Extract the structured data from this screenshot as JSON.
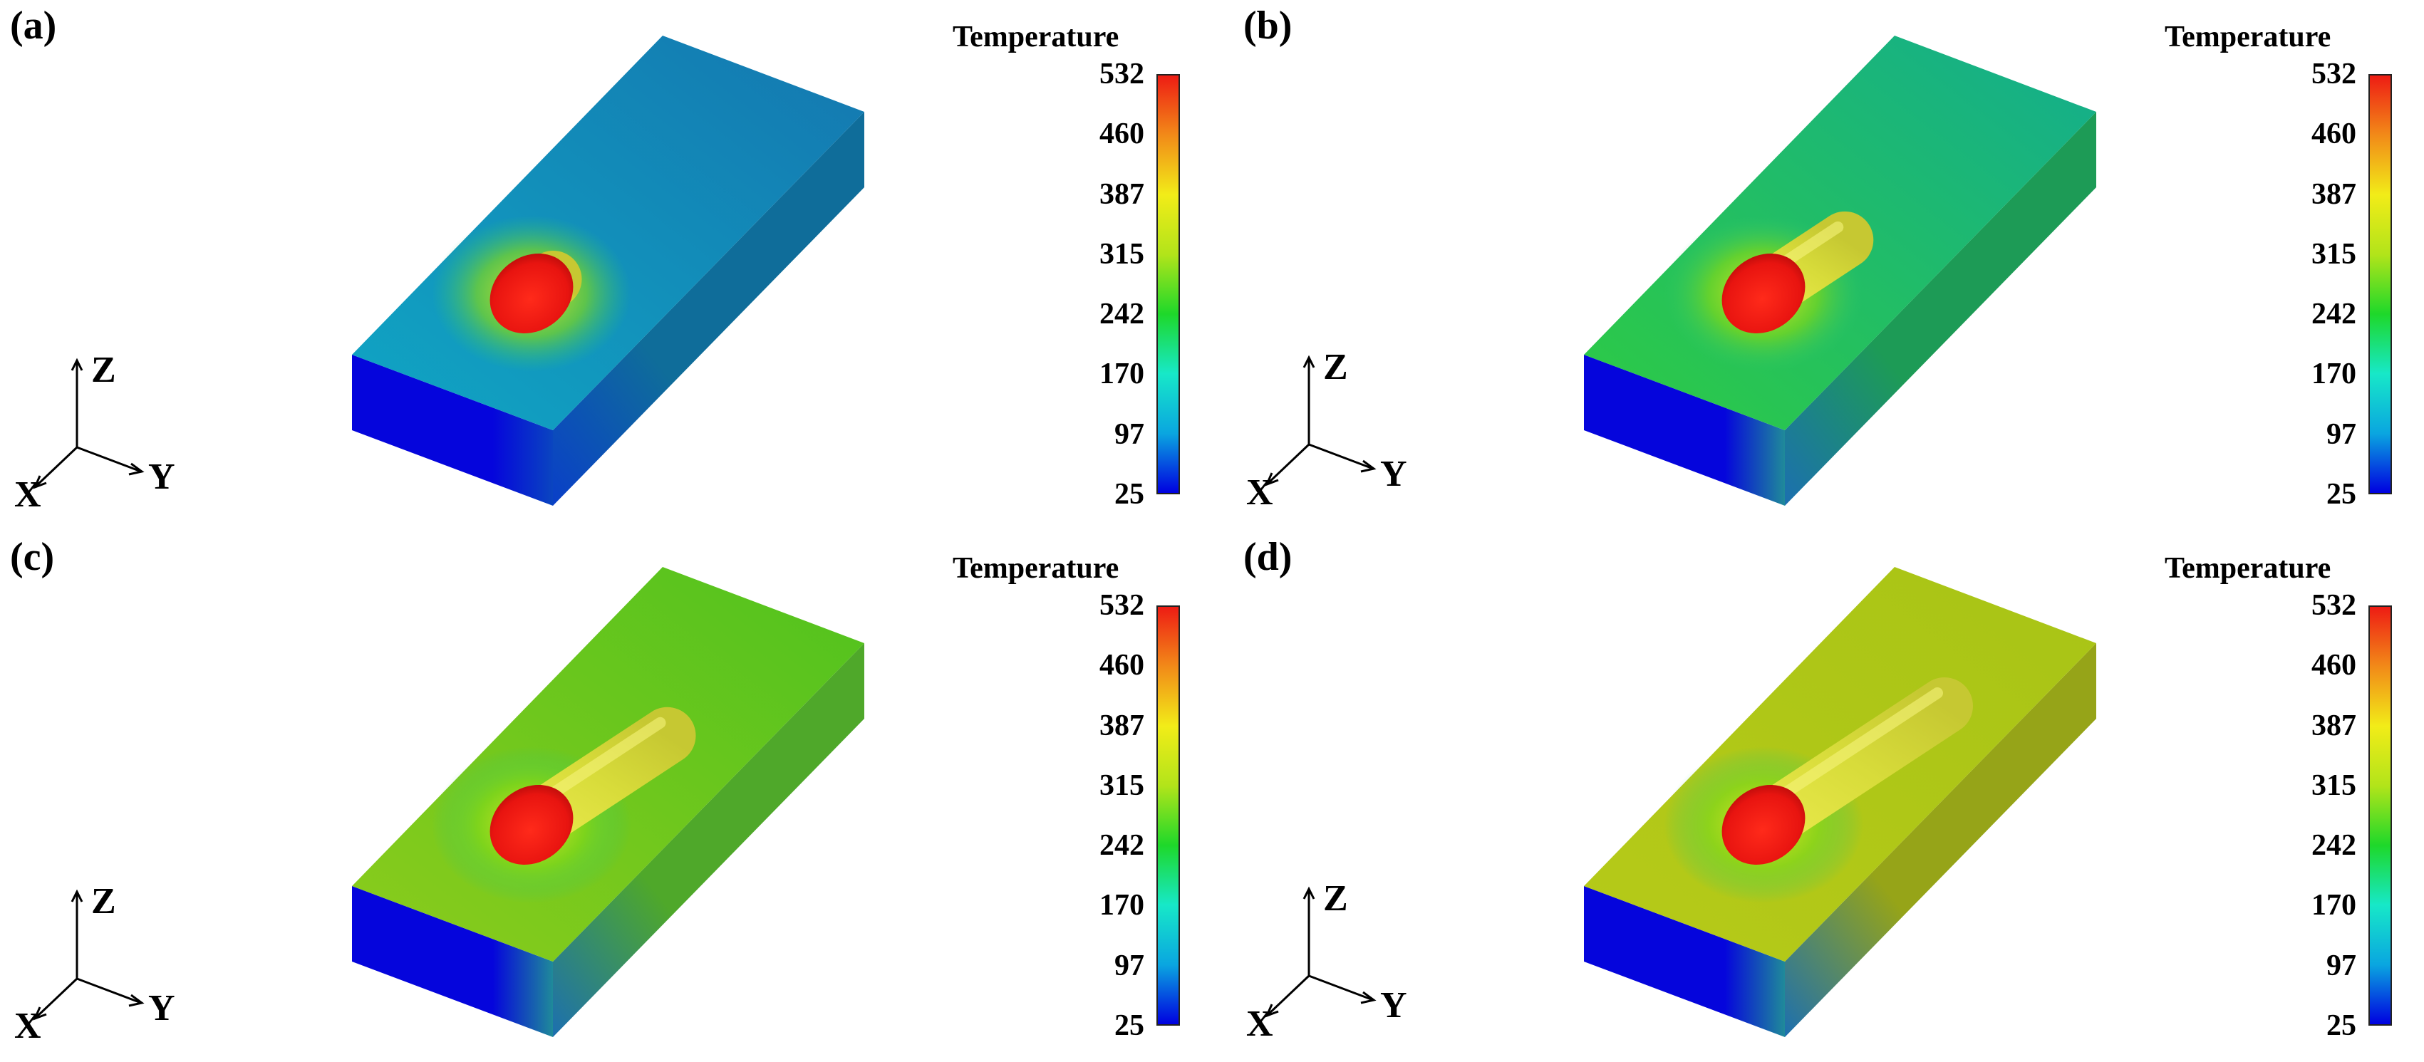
{
  "figure": {
    "colorbar": {
      "title": "Temperature",
      "ticks": [
        "532",
        "460",
        "387",
        "315",
        "242",
        "170",
        "97",
        "25"
      ],
      "min": 25,
      "max": 532,
      "gradient_colors": [
        "#0000e0",
        "#0aa6e0",
        "#17e8c8",
        "#1ed82a",
        "#b2e41a",
        "#f2ec18",
        "#f28a18",
        "#ee1c14"
      ]
    },
    "axes": {
      "x": "X",
      "y": "Y",
      "z": "Z"
    },
    "panels": [
      {
        "letter": "(a)",
        "stage": 1,
        "bead_fraction": 0.12,
        "top_color_far": "#1477b0",
        "top_color_near": "#10a6c4",
        "side_color": "#0f6d9a",
        "front_color": "#0505dc"
      },
      {
        "letter": "(b)",
        "stage": 2,
        "bead_fraction": 0.45,
        "top_color_far": "#13ad8e",
        "top_color_near": "#2ecb43",
        "side_color": "#1d9b56",
        "front_color": "#0505dc"
      },
      {
        "letter": "(c)",
        "stage": 3,
        "bead_fraction": 0.75,
        "top_color_far": "#50c21e",
        "top_color_near": "#8ccc1c",
        "side_color": "#4fa82a",
        "front_color": "#0505dc"
      },
      {
        "letter": "(d)",
        "stage": 4,
        "bead_fraction": 1.0,
        "top_color_far": "#a8c416",
        "top_color_near": "#b6ca18",
        "side_color": "#96a418",
        "front_color": "#0505dc"
      }
    ]
  }
}
